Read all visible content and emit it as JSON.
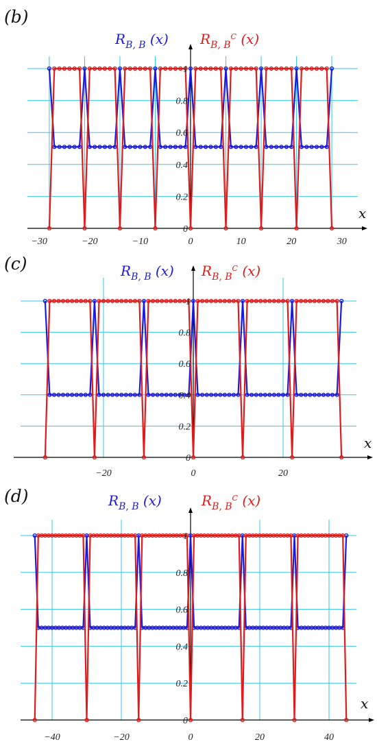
{
  "colors": {
    "blue": "#1a1adf",
    "red": "#e01b1b",
    "grid": "#33c6ec",
    "axis": "#000000"
  },
  "chart_data": [
    {
      "panel_label": "(b)",
      "type": "line",
      "xlabel": "x",
      "grid": true,
      "period": 7,
      "x_range": [
        -28,
        28
      ],
      "x_ticks": [
        -30,
        -20,
        -10,
        0,
        10,
        20,
        30
      ],
      "x_tick_labels": [
        "−30",
        "−20",
        "−10",
        "0",
        "10",
        "20",
        "30"
      ],
      "y_ticks": [
        0,
        0.2,
        0.4,
        0.6,
        0.8,
        1
      ],
      "y_tick_labels": [
        "0",
        "0.2",
        "0.4",
        "0.6",
        "0.8",
        "1"
      ],
      "ylim": [
        0,
        1
      ],
      "series": [
        {
          "name": "R_{B,B}(x)",
          "label_main": "R",
          "label_sub": "B, B",
          "label_tail": " (x)",
          "color": "blue",
          "peak_value": 1,
          "base_value": 0.51
        },
        {
          "name": "R_{B,B^C}(x)",
          "label_main": "R",
          "label_sub": "B, B",
          "label_sup": "C",
          "label_tail": " (x)",
          "color": "red",
          "peak_value": 0,
          "base_value": 1
        }
      ]
    },
    {
      "panel_label": "(c)",
      "type": "line",
      "xlabel": "x",
      "grid": true,
      "period": 11,
      "x_range": [
        -33,
        33
      ],
      "x_ticks": [
        -20,
        0,
        20
      ],
      "x_tick_labels": [
        "−20",
        "0",
        "20"
      ],
      "y_ticks": [
        0,
        0.2,
        0.4,
        0.6,
        0.8,
        1
      ],
      "y_tick_labels": [
        "0",
        "0.2",
        "0.4",
        "0.6",
        "0.8",
        "1"
      ],
      "ylim": [
        0,
        1
      ],
      "series": [
        {
          "name": "R_{B,B}(x)",
          "label_main": "R",
          "label_sub": "B, B",
          "label_tail": " (x)",
          "color": "blue",
          "peak_value": 1,
          "base_value": 0.4
        },
        {
          "name": "R_{B,B^C}(x)",
          "label_main": "R",
          "label_sub": "B, B",
          "label_sup": "C",
          "label_tail": " (x)",
          "color": "red",
          "peak_value": 0,
          "base_value": 1
        }
      ]
    },
    {
      "panel_label": "(d)",
      "type": "line",
      "xlabel": "x",
      "grid": true,
      "period": 15,
      "x_range": [
        -45,
        45
      ],
      "x_ticks": [
        -40,
        -20,
        0,
        20,
        40
      ],
      "x_tick_labels": [
        "−40",
        "−20",
        "0",
        "20",
        "40"
      ],
      "y_ticks": [
        0,
        0.2,
        0.4,
        0.6,
        0.8,
        1
      ],
      "y_tick_labels": [
        "0",
        "0.2",
        "0.4",
        "0.6",
        "0.8",
        "1"
      ],
      "ylim": [
        0,
        1
      ],
      "series": [
        {
          "name": "R_{B,B}(x)",
          "label_main": "R",
          "label_sub": "B, B",
          "label_tail": " (x)",
          "color": "blue",
          "peak_value": 1,
          "base_value": 0.5
        },
        {
          "name": "R_{B,B^C}(x)",
          "label_main": "R",
          "label_sub": "B, B",
          "label_sup": "C",
          "label_tail": " (x)",
          "color": "red",
          "peak_value": 0,
          "base_value": 1
        }
      ]
    }
  ]
}
